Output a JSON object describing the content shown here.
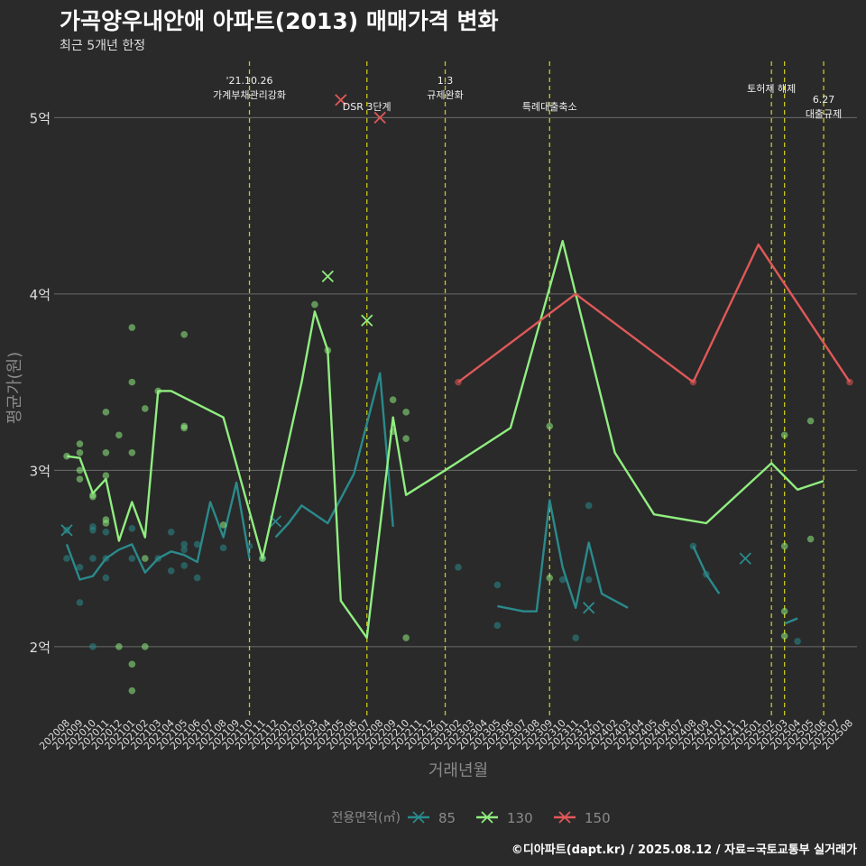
{
  "title": "가곡양우내안애 아파트(2013) 매매가격 변화",
  "subtitle": "최근 5개년 한정",
  "caption": "©디아파트(dapt.kr) / 2025.08.12 / 자료=국토교통부 실거래가",
  "colors": {
    "background": "#2a2a2a",
    "grid": "#6b6b6b",
    "policy_line": "#c8c820",
    "text": "#dddddd",
    "axis_title": "#8a8a8a"
  },
  "chart_data": {
    "type": "line",
    "xlabel": "거래년월",
    "ylabel": "평균가(원)",
    "ylim": [
      1.6,
      5.35
    ],
    "yticks": [
      {
        "value": 2,
        "label": "2억"
      },
      {
        "value": 3,
        "label": "3억"
      },
      {
        "value": 4,
        "label": "4억"
      },
      {
        "value": 5,
        "label": "5억"
      }
    ],
    "categories": [
      "202008",
      "202009",
      "202010",
      "202011",
      "202012",
      "202101",
      "202102",
      "202103",
      "202104",
      "202105",
      "202106",
      "202107",
      "202108",
      "202109",
      "202110",
      "202111",
      "202112",
      "202201",
      "202202",
      "202203",
      "202204",
      "202205",
      "202206",
      "202207",
      "202208",
      "202209",
      "202210",
      "202211",
      "202212",
      "202301",
      "202302",
      "202303",
      "202304",
      "202305",
      "202306",
      "202307",
      "202308",
      "202309",
      "202310",
      "202311",
      "202312",
      "202401",
      "202402",
      "202403",
      "202404",
      "202405",
      "202406",
      "202407",
      "202408",
      "202409",
      "202410",
      "202411",
      "202412",
      "202501",
      "202502",
      "202503",
      "202504",
      "202505",
      "202506",
      "202507",
      "202508"
    ],
    "legend": {
      "title": "전용면적(㎡)",
      "position": "bottom"
    },
    "series": [
      {
        "name": "85",
        "color": "#2a8a8c",
        "segments": [
          [
            [
              "202008",
              2.58
            ],
            [
              "202009",
              2.38
            ],
            [
              "202010",
              2.4
            ],
            [
              "202011",
              2.5
            ],
            [
              "202012",
              2.55
            ],
            [
              "202101",
              2.58
            ],
            [
              "202102",
              2.42
            ],
            [
              "202103",
              2.5
            ],
            [
              "202104",
              2.54
            ],
            [
              "202105",
              2.52
            ],
            [
              "202106",
              2.48
            ],
            [
              "202107",
              2.82
            ],
            [
              "202108",
              2.62
            ],
            [
              "202109",
              2.93
            ],
            [
              "202110",
              2.5
            ]
          ],
          [
            [
              "202112",
              2.62
            ],
            [
              "202201",
              2.7
            ],
            [
              "202202",
              2.8
            ],
            [
              "202203",
              2.75
            ],
            [
              "202204",
              2.7
            ],
            [
              "202206",
              2.98
            ],
            [
              "202208",
              3.55
            ],
            [
              "202209",
              2.68
            ]
          ],
          [
            [
              "202305",
              2.23
            ],
            [
              "202307",
              2.2
            ],
            [
              "202308",
              2.2
            ],
            [
              "202309",
              2.83
            ],
            [
              "202310",
              2.45
            ],
            [
              "202311",
              2.22
            ],
            [
              "202312",
              2.59
            ],
            [
              "202401",
              2.3
            ],
            [
              "202403",
              2.22
            ]
          ],
          [
            [
              "202408",
              2.57
            ],
            [
              "202409",
              2.41
            ],
            [
              "202410",
              2.3
            ]
          ],
          [
            [
              "202503",
              2.13
            ],
            [
              "202504",
              2.16
            ]
          ]
        ],
        "points": [
          [
            "202008",
            2.66
          ],
          [
            "202008",
            2.5
          ],
          [
            "202009",
            2.45
          ],
          [
            "202009",
            2.25
          ],
          [
            "202010",
            2.68
          ],
          [
            "202010",
            2.66
          ],
          [
            "202010",
            2.5
          ],
          [
            "202010",
            2.0
          ],
          [
            "202011",
            2.65
          ],
          [
            "202011",
            2.5
          ],
          [
            "202011",
            2.39
          ],
          [
            "202101",
            2.67
          ],
          [
            "202101",
            2.5
          ],
          [
            "202103",
            2.5
          ],
          [
            "202104",
            2.65
          ],
          [
            "202104",
            2.43
          ],
          [
            "202105",
            2.58
          ],
          [
            "202105",
            2.55
          ],
          [
            "202105",
            2.46
          ],
          [
            "202106",
            2.58
          ],
          [
            "202106",
            2.39
          ],
          [
            "202108",
            2.56
          ],
          [
            "202110",
            2.57
          ],
          [
            "202111",
            2.5
          ],
          [
            "202302",
            2.45
          ],
          [
            "202305",
            2.35
          ],
          [
            "202305",
            2.12
          ],
          [
            "202310",
            2.38
          ],
          [
            "202311",
            2.05
          ],
          [
            "202312",
            2.8
          ],
          [
            "202312",
            2.38
          ],
          [
            "202408",
            2.57
          ],
          [
            "202409",
            2.41
          ],
          [
            "202504",
            2.03
          ]
        ],
        "x_marks": [
          [
            "202008",
            2.66
          ],
          [
            "202112",
            2.71
          ],
          [
            "202312",
            2.22
          ],
          [
            "202412",
            2.5
          ]
        ]
      },
      {
        "name": "130",
        "color": "#90ee80",
        "segments": [
          [
            [
              "202008",
              3.08
            ],
            [
              "202009",
              3.07
            ],
            [
              "202010",
              2.87
            ],
            [
              "202011",
              2.95
            ],
            [
              "202012",
              2.6
            ],
            [
              "202101",
              2.82
            ],
            [
              "202102",
              2.62
            ],
            [
              "202103",
              3.45
            ],
            [
              "202104",
              3.45
            ],
            [
              "202108",
              3.3
            ],
            [
              "202111",
              2.5
            ],
            [
              "202202",
              3.5
            ],
            [
              "202203",
              3.9
            ],
            [
              "202204",
              3.68
            ],
            [
              "202205",
              2.26
            ],
            [
              "202207",
              2.05
            ],
            [
              "202209",
              3.3
            ],
            [
              "202210",
              2.86
            ],
            [
              "202301",
              3.0
            ],
            [
              "202306",
              3.24
            ],
            [
              "202310",
              4.3
            ],
            [
              "202402",
              3.1
            ],
            [
              "202405",
              2.75
            ],
            [
              "202409",
              2.7
            ],
            [
              "202502",
              3.04
            ],
            [
              "202504",
              2.89
            ],
            [
              "202506",
              2.94
            ]
          ]
        ],
        "points": [
          [
            "202008",
            3.08
          ],
          [
            "202009",
            3.15
          ],
          [
            "202009",
            3.1
          ],
          [
            "202009",
            3.0
          ],
          [
            "202009",
            2.95
          ],
          [
            "202010",
            2.85
          ],
          [
            "202010",
            2.86
          ],
          [
            "202011",
            3.33
          ],
          [
            "202011",
            3.1
          ],
          [
            "202011",
            2.97
          ],
          [
            "202011",
            2.72
          ],
          [
            "202011",
            2.7
          ],
          [
            "202012",
            3.2
          ],
          [
            "202012",
            2.0
          ],
          [
            "202101",
            3.81
          ],
          [
            "202101",
            3.5
          ],
          [
            "202101",
            3.1
          ],
          [
            "202101",
            1.9
          ],
          [
            "202101",
            1.75
          ],
          [
            "202102",
            3.35
          ],
          [
            "202102",
            2.5
          ],
          [
            "202102",
            2.0
          ],
          [
            "202103",
            3.45
          ],
          [
            "202105",
            3.77
          ],
          [
            "202105",
            3.25
          ],
          [
            "202105",
            3.24
          ],
          [
            "202108",
            2.69
          ],
          [
            "202111",
            2.5
          ],
          [
            "202203",
            3.94
          ],
          [
            "202204",
            3.68
          ],
          [
            "202209",
            3.4
          ],
          [
            "202209",
            3.22
          ],
          [
            "202210",
            3.33
          ],
          [
            "202210",
            3.18
          ],
          [
            "202210",
            2.05
          ],
          [
            "202309",
            3.25
          ],
          [
            "202309",
            2.39
          ],
          [
            "202503",
            3.2
          ],
          [
            "202503",
            2.57
          ],
          [
            "202503",
            2.2
          ],
          [
            "202503",
            2.06
          ],
          [
            "202505",
            3.28
          ],
          [
            "202505",
            2.61
          ]
        ],
        "x_marks": [
          [
            "202204",
            4.1
          ],
          [
            "202207",
            3.85
          ]
        ]
      },
      {
        "name": "150",
        "color": "#e05858",
        "segments": [
          [
            [
              "202302",
              3.5
            ],
            [
              "202311",
              4.0
            ],
            [
              "202408",
              3.5
            ],
            [
              "202501",
              4.28
            ],
            [
              "202508",
              3.5
            ]
          ]
        ],
        "points": [
          [
            "202302",
            3.5
          ],
          [
            "202408",
            3.5
          ],
          [
            "202508",
            3.5
          ]
        ],
        "x_marks": [
          [
            "202205",
            5.1
          ],
          [
            "202208",
            5.0
          ]
        ]
      }
    ],
    "policy_lines": [
      {
        "x": "202110",
        "labels": [
          "'21.10.26",
          "가계부채관리강화"
        ]
      },
      {
        "x": "202207",
        "labels": [
          "DSR 3단계"
        ]
      },
      {
        "x": "202301",
        "labels": [
          "1.3",
          "규제완화"
        ]
      },
      {
        "x": "202309",
        "labels": [
          "특례대출축소"
        ]
      },
      {
        "x": "202502",
        "labels": [
          "토허제 해제"
        ]
      },
      {
        "x": "202503",
        "labels": []
      },
      {
        "x": "202506",
        "labels": [
          "6.27",
          "대출규제"
        ]
      }
    ]
  }
}
